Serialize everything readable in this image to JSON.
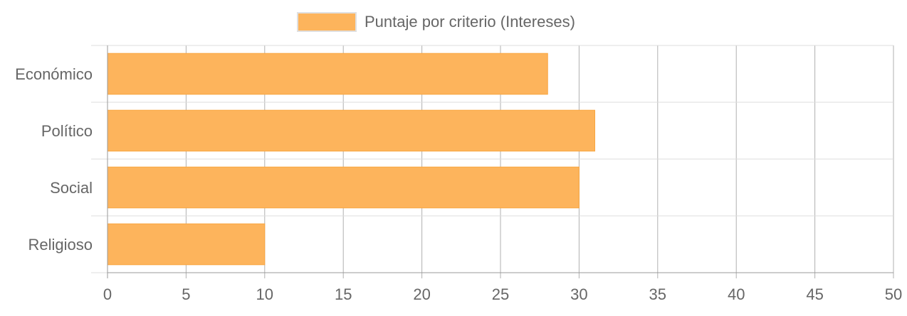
{
  "chart_data": {
    "type": "bar",
    "orientation": "horizontal",
    "categories": [
      "Económico",
      "Político",
      "Social",
      "Religioso"
    ],
    "series": [
      {
        "name": "Puntaje por criterio (Intereses)",
        "values": [
          28,
          31,
          30,
          10
        ],
        "color": "#fdb45c"
      }
    ],
    "xlim": [
      0,
      50
    ],
    "xticks": [
      "0",
      "5",
      "10",
      "15",
      "20",
      "25",
      "30",
      "35",
      "40",
      "45",
      "50"
    ],
    "grid": true,
    "legend_position": "top",
    "colors": {
      "bar_fill": "#fdb45c",
      "grid": "#dddddd",
      "axis": "#999999",
      "text": "#666666"
    }
  }
}
